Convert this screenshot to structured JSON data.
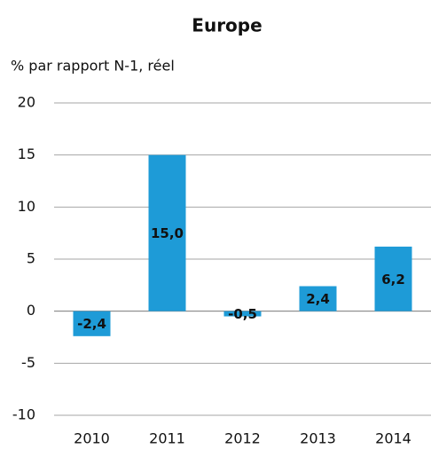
{
  "chart_data": {
    "type": "bar",
    "title": "Europe",
    "subtitle": "% par rapport N-1, réel",
    "categories": [
      "2010",
      "2011",
      "2012",
      "2013",
      "2014"
    ],
    "values": [
      -2.4,
      15.0,
      -0.5,
      2.4,
      6.2
    ],
    "value_labels": [
      "-2,4",
      "15,0",
      "-0,5",
      "2,4",
      "6,2"
    ],
    "color": "#1e9bd7",
    "ylim": [
      -10,
      20
    ],
    "yticks": [
      -10,
      -5,
      0,
      5,
      10,
      15,
      20
    ],
    "grid": true
  }
}
